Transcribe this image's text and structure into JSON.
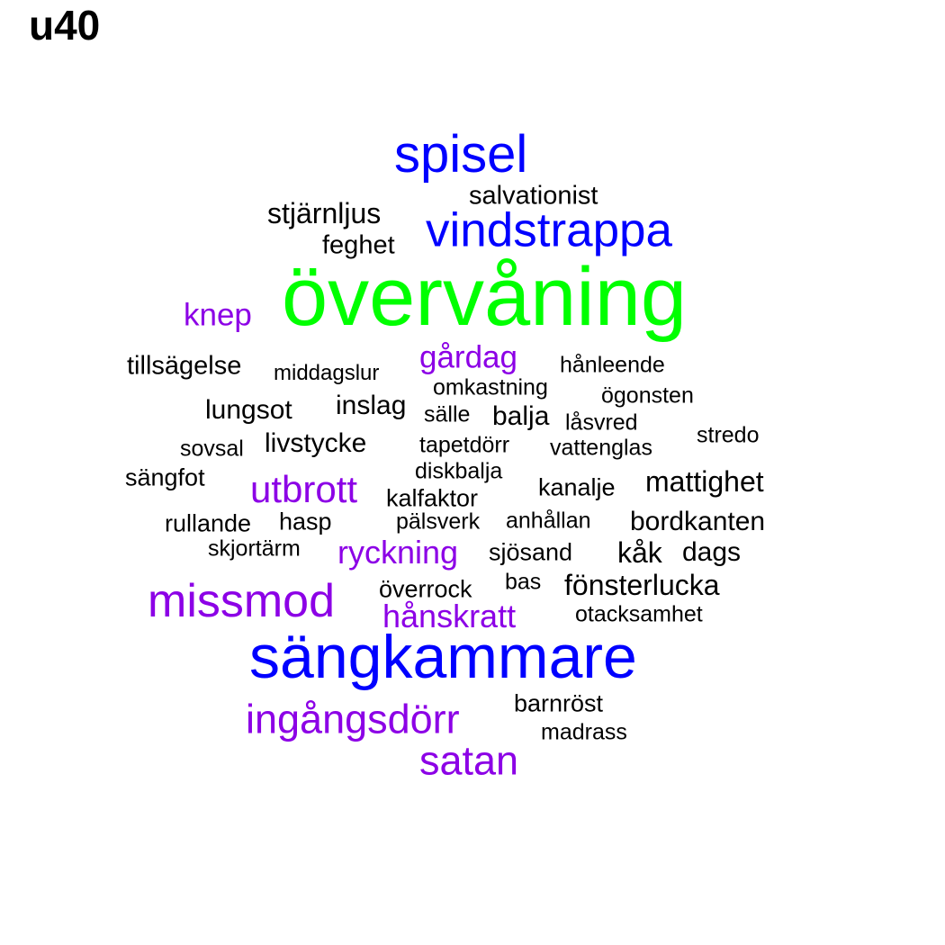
{
  "title": "u40",
  "colors": {
    "black": "#000000",
    "purple": "#8c00e6",
    "blue": "#0000ff",
    "green": "#00ff00"
  },
  "words": [
    {
      "text": "övervåning",
      "color": "green"
    },
    {
      "text": "sängkammare",
      "color": "blue"
    },
    {
      "text": "spisel",
      "color": "blue"
    },
    {
      "text": "vindstrappa",
      "color": "blue"
    },
    {
      "text": "missmod",
      "color": "purple"
    },
    {
      "text": "ingångsdörr",
      "color": "purple"
    },
    {
      "text": "satan",
      "color": "purple"
    },
    {
      "text": "utbrott",
      "color": "purple"
    },
    {
      "text": "ryckning",
      "color": "purple"
    },
    {
      "text": "hånskratt",
      "color": "purple"
    },
    {
      "text": "gårdag",
      "color": "purple"
    },
    {
      "text": "knep",
      "color": "purple"
    },
    {
      "text": "stjärnljus",
      "color": "black"
    },
    {
      "text": "salvationist",
      "color": "black"
    },
    {
      "text": "feghet",
      "color": "black"
    },
    {
      "text": "tillsägelse",
      "color": "black"
    },
    {
      "text": "middagslur",
      "color": "black"
    },
    {
      "text": "hånleende",
      "color": "black"
    },
    {
      "text": "omkastning",
      "color": "black"
    },
    {
      "text": "ögonsten",
      "color": "black"
    },
    {
      "text": "lungsot",
      "color": "black"
    },
    {
      "text": "inslag",
      "color": "black"
    },
    {
      "text": "sälle",
      "color": "black"
    },
    {
      "text": "balja",
      "color": "black"
    },
    {
      "text": "låsvred",
      "color": "black"
    },
    {
      "text": "stredo",
      "color": "black"
    },
    {
      "text": "sovsal",
      "color": "black"
    },
    {
      "text": "livstycke",
      "color": "black"
    },
    {
      "text": "tapetdörr",
      "color": "black"
    },
    {
      "text": "vattenglas",
      "color": "black"
    },
    {
      "text": "diskbalja",
      "color": "black"
    },
    {
      "text": "sängfot",
      "color": "black"
    },
    {
      "text": "kalfaktor",
      "color": "black"
    },
    {
      "text": "kanalje",
      "color": "black"
    },
    {
      "text": "mattighet",
      "color": "black"
    },
    {
      "text": "rullande",
      "color": "black"
    },
    {
      "text": "hasp",
      "color": "black"
    },
    {
      "text": "pälsverk",
      "color": "black"
    },
    {
      "text": "anhållan",
      "color": "black"
    },
    {
      "text": "bordkanten",
      "color": "black"
    },
    {
      "text": "skjortärm",
      "color": "black"
    },
    {
      "text": "sjösand",
      "color": "black"
    },
    {
      "text": "kåk",
      "color": "black"
    },
    {
      "text": "dags",
      "color": "black"
    },
    {
      "text": "överrock",
      "color": "black"
    },
    {
      "text": "bas",
      "color": "black"
    },
    {
      "text": "fönsterlucka",
      "color": "black"
    },
    {
      "text": "otacksamhet",
      "color": "black"
    },
    {
      "text": "barnröst",
      "color": "black"
    },
    {
      "text": "madrass",
      "color": "black"
    }
  ]
}
